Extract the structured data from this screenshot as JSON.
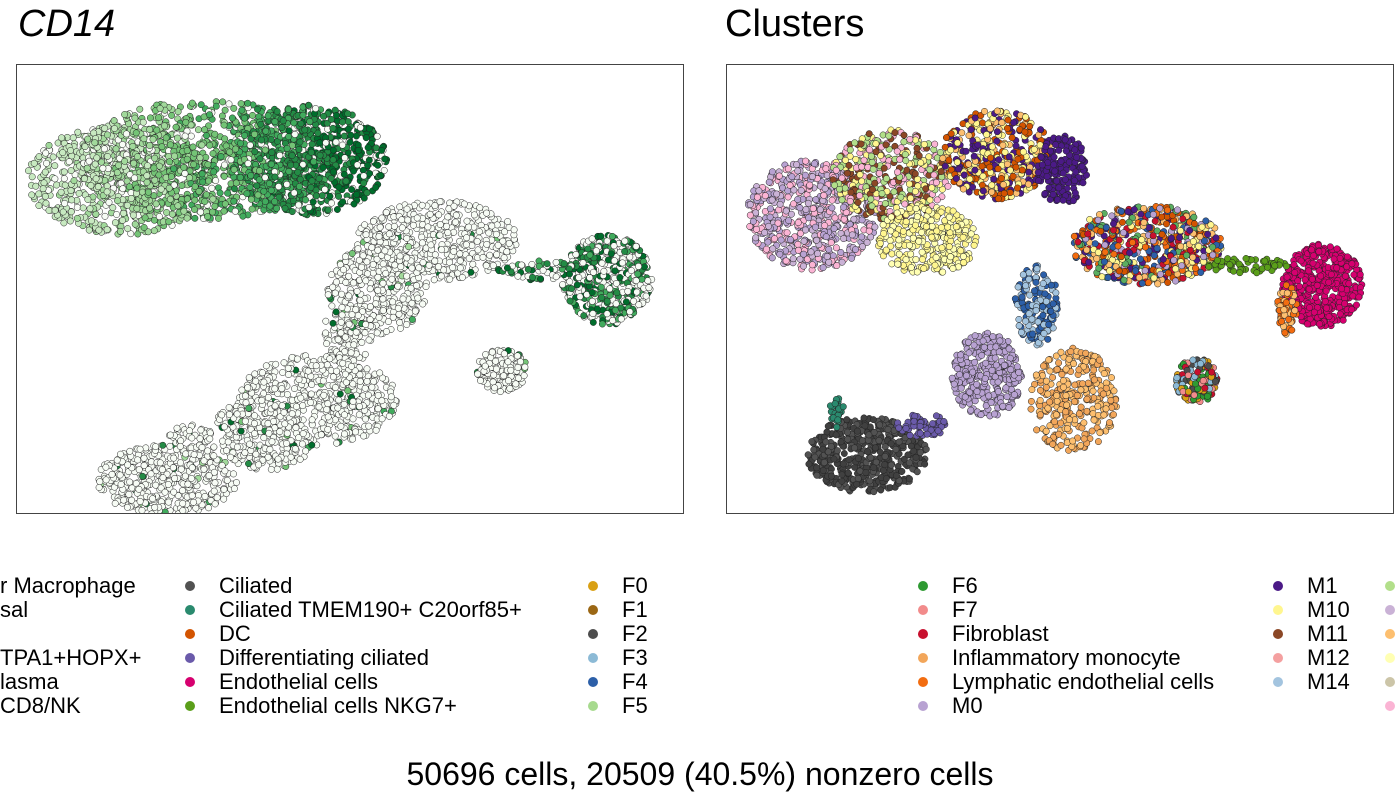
{
  "chart_data": [
    {
      "type": "scatter",
      "title": "CD14",
      "xlabel": "",
      "ylabel": "",
      "grid": false
    },
    {
      "type": "scatter",
      "title": "Clusters",
      "xlabel": "",
      "ylabel": "",
      "grid": false,
      "legend": {
        "placement": "bottom",
        "entries": [
          {
            "name": "r Macrophage",
            "color": "#8E6BA8"
          },
          {
            "name": "sal",
            "color": "#A6CEE3"
          },
          {
            "name": "",
            "color": ""
          },
          {
            "name": "TPA1+HOPX+",
            "color": "#5AAE61"
          },
          {
            "name": "lasma",
            "color": "#FDBF6F"
          },
          {
            "name": "CD8/NK",
            "color": "#A6461C"
          },
          {
            "name": "Ciliated",
            "color": "#525252"
          },
          {
            "name": "Ciliated TMEM190+ C20orf85+",
            "color": "#2A8A6E"
          },
          {
            "name": "DC",
            "color": "#D35400"
          },
          {
            "name": "Differentiating ciliated",
            "color": "#6A5AAA"
          },
          {
            "name": "Endothelial cells",
            "color": "#D6006F"
          },
          {
            "name": "Endothelial cells NKG7+",
            "color": "#5A9E1A"
          },
          {
            "name": "F0",
            "color": "#D9A014"
          },
          {
            "name": "F1",
            "color": "#9B6714"
          },
          {
            "name": "F2",
            "color": "#4D4D4D"
          },
          {
            "name": "F3",
            "color": "#8CBAD6"
          },
          {
            "name": "F4",
            "color": "#2C5FA8"
          },
          {
            "name": "F5",
            "color": "#A7DA8E"
          },
          {
            "name": "F6",
            "color": "#2E9A32"
          },
          {
            "name": "F7",
            "color": "#F28B8B"
          },
          {
            "name": "Fibroblast",
            "color": "#C8102E"
          },
          {
            "name": "Inflammatory monocyte",
            "color": "#F2A65A"
          },
          {
            "name": "Lymphatic endothelial cells",
            "color": "#F26C10"
          },
          {
            "name": "M0",
            "color": "#B8A2D2"
          },
          {
            "name": "M1",
            "color": "#4B1A87"
          },
          {
            "name": "M10",
            "color": "#FFF68F"
          },
          {
            "name": "M11",
            "color": "#8B4726"
          },
          {
            "name": "M12",
            "color": "#F4A0A0"
          },
          {
            "name": "M14",
            "color": "#A3C4DF"
          }
        ]
      }
    }
  ],
  "footer": "50696 cells, 20509 (40.5%) nonzero cells"
}
